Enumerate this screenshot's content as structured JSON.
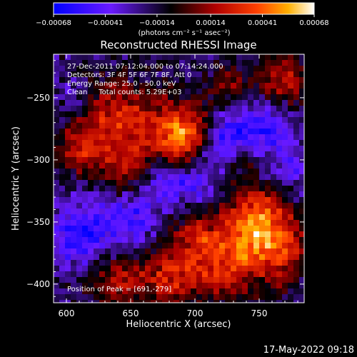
{
  "chart_data": {
    "type": "heatmap",
    "title": "Reconstructed RHESSI Image",
    "xlabel": "Heliocentric X (arcsec)",
    "ylabel": "Heliocentric Y (arcsec)",
    "xlim": [
      590,
      785
    ],
    "ylim": [
      -415,
      -215
    ],
    "x_ticks": [
      600,
      650,
      700,
      750
    ],
    "y_ticks": [
      -250,
      -300,
      -350,
      -400
    ],
    "x_tick_labels": [
      "600",
      "650",
      "700",
      "750"
    ],
    "y_tick_labels": [
      "−250",
      "−300",
      "−350",
      "−400"
    ],
    "colorbar": {
      "min": -0.00068,
      "max": 0.00068,
      "tick_values": [
        -0.00068,
        -0.00041,
        -0.00014,
        0.00014,
        0.00041,
        0.00068
      ],
      "tick_labels": [
        "−0.00068",
        "−0.00041",
        "−0.00014",
        "0.00014",
        "0.00041",
        "0.00068"
      ],
      "units": "(photons cm⁻² s⁻¹ asec⁻²)",
      "colors": [
        "#0000ff",
        "#6a1aff",
        "#000000",
        "#b00000",
        "#ff4000",
        "#ffb000",
        "#ffffff"
      ]
    },
    "annotations": [
      "27-Dec-2011 07:12:04.000 to 07:14:24.000",
      "Detectors: 3F 4F 5F 6F 7F 8F, Att 0",
      "Energy Range: 25.0 - 50.0 keV",
      "Clean     Total counts: 5.29E+03"
    ],
    "peak_text": "Position of Peak = [691,-279]",
    "peak": {
      "x": 691,
      "y": -279
    },
    "intensity_blobs": [
      {
        "x": 690,
        "y": -279,
        "value": 0.00068,
        "r": 16
      },
      {
        "x": 640,
        "y": -270,
        "value": 0.00045,
        "r": 22
      },
      {
        "x": 612,
        "y": -295,
        "value": 0.0003,
        "r": 14
      },
      {
        "x": 650,
        "y": -310,
        "value": 0.00032,
        "r": 12
      },
      {
        "x": 770,
        "y": -236,
        "value": 0.0004,
        "r": 14
      },
      {
        "x": 728,
        "y": -240,
        "value": 0.00025,
        "r": 12
      },
      {
        "x": 745,
        "y": -345,
        "value": 0.00045,
        "r": 18
      },
      {
        "x": 760,
        "y": -370,
        "value": 0.0005,
        "r": 20
      },
      {
        "x": 720,
        "y": -385,
        "value": 0.00042,
        "r": 18
      },
      {
        "x": 680,
        "y": -395,
        "value": 0.0004,
        "r": 16
      },
      {
        "x": 640,
        "y": -395,
        "value": 0.00035,
        "r": 14
      },
      {
        "x": 700,
        "y": -360,
        "value": 0.0003,
        "r": 14
      },
      {
        "x": 740,
        "y": -300,
        "value": 0.00022,
        "r": 10
      },
      {
        "x": 670,
        "y": -320,
        "value": -0.00025,
        "r": 14
      },
      {
        "x": 610,
        "y": -360,
        "value": -0.0004,
        "r": 18
      },
      {
        "x": 650,
        "y": -350,
        "value": -0.0003,
        "r": 14
      },
      {
        "x": 750,
        "y": -275,
        "value": -0.00035,
        "r": 18
      },
      {
        "x": 720,
        "y": -285,
        "value": -0.0003,
        "r": 14
      },
      {
        "x": 700,
        "y": -320,
        "value": -0.00025,
        "r": 14
      },
      {
        "x": 605,
        "y": -250,
        "value": -0.00015,
        "r": 10
      },
      {
        "x": 775,
        "y": -310,
        "value": -0.0002,
        "r": 12
      }
    ]
  },
  "footer": {
    "date": "17-May-2022 09:18"
  }
}
